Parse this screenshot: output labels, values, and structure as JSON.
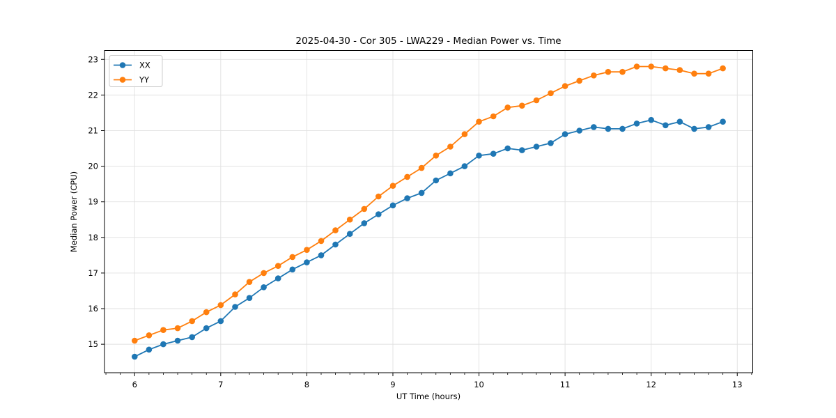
{
  "chart_data": {
    "type": "line",
    "title": "2025-04-30 - Cor 305 - LWA229 - Median Power vs. Time",
    "xlabel": "UT Time (hours)",
    "ylabel": "Median Power (CPU)",
    "xlim": [
      5.65,
      13.18
    ],
    "ylim": [
      14.2,
      23.25
    ],
    "xticks": [
      6,
      7,
      8,
      9,
      10,
      11,
      12,
      13
    ],
    "yticks": [
      15,
      16,
      17,
      18,
      19,
      20,
      21,
      22,
      23
    ],
    "minor_x_step_hours": 0.1667,
    "grid": true,
    "legend_position": "upper left",
    "background_color": "#ffffff",
    "grid_color": "#e0e0e0",
    "spine_color": "#000000",
    "x": [
      6.0,
      6.167,
      6.333,
      6.5,
      6.667,
      6.833,
      7.0,
      7.167,
      7.333,
      7.5,
      7.667,
      7.833,
      8.0,
      8.167,
      8.333,
      8.5,
      8.667,
      8.833,
      9.0,
      9.167,
      9.333,
      9.5,
      9.667,
      9.833,
      10.0,
      10.167,
      10.333,
      10.5,
      10.667,
      10.833,
      11.0,
      11.167,
      11.333,
      11.5,
      11.667,
      11.833,
      12.0,
      12.167,
      12.333,
      12.5,
      12.667,
      12.833
    ],
    "series": [
      {
        "name": "XX",
        "color": "#1f77b4",
        "values": [
          14.65,
          14.85,
          15.0,
          15.1,
          15.2,
          15.45,
          15.65,
          16.05,
          16.3,
          16.6,
          16.85,
          17.1,
          17.3,
          17.5,
          17.8,
          18.1,
          18.4,
          18.65,
          18.9,
          19.1,
          19.25,
          19.6,
          19.8,
          20.0,
          20.3,
          20.35,
          20.5,
          20.45,
          20.55,
          20.65,
          20.9,
          21.0,
          21.1,
          21.05,
          21.05,
          21.2,
          21.3,
          21.15,
          21.25,
          21.05,
          21.1,
          21.25
        ]
      },
      {
        "name": "YY",
        "color": "#ff7f0e",
        "values": [
          15.1,
          15.25,
          15.4,
          15.45,
          15.65,
          15.9,
          16.1,
          16.4,
          16.75,
          17.0,
          17.2,
          17.45,
          17.65,
          17.9,
          18.2,
          18.5,
          18.8,
          19.15,
          19.45,
          19.7,
          19.95,
          20.3,
          20.55,
          20.9,
          21.25,
          21.4,
          21.65,
          21.7,
          21.85,
          22.05,
          22.25,
          22.4,
          22.55,
          22.65,
          22.65,
          22.8,
          22.8,
          22.75,
          22.7,
          22.6,
          22.6,
          22.75
        ]
      }
    ]
  }
}
